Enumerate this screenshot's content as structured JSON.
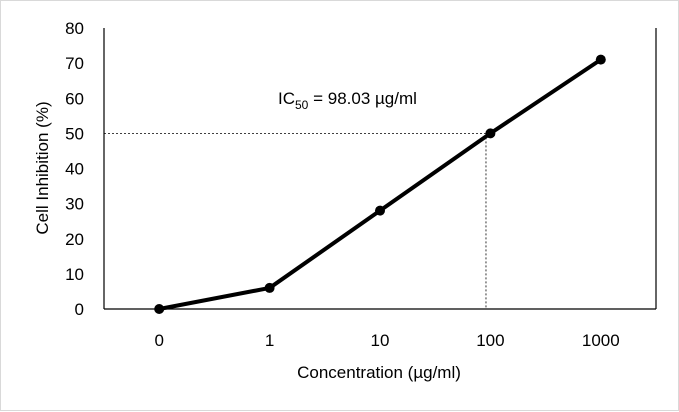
{
  "chart_data": {
    "type": "line",
    "categories": [
      "0",
      "1",
      "10",
      "100",
      "1000"
    ],
    "series": [
      {
        "values": [
          0,
          6,
          28,
          50,
          71
        ]
      }
    ],
    "xlabel": "Concentration (µg/ml)",
    "ylabel": "Cell Inhibition (%)",
    "ylim": [
      0,
      80
    ],
    "yticks": [
      0,
      10,
      20,
      30,
      40,
      50,
      60,
      70,
      80
    ],
    "grid": false,
    "annotation": {
      "ic_label_main": "IC",
      "ic_label_sub": "50",
      "ic_label_rest": " = 98.03 µg/ml",
      "ic50_level": 50,
      "ic50_category_position": 2.96
    },
    "colors": {
      "line": "#000000",
      "marker": "#000000",
      "guide": "#000000"
    }
  }
}
